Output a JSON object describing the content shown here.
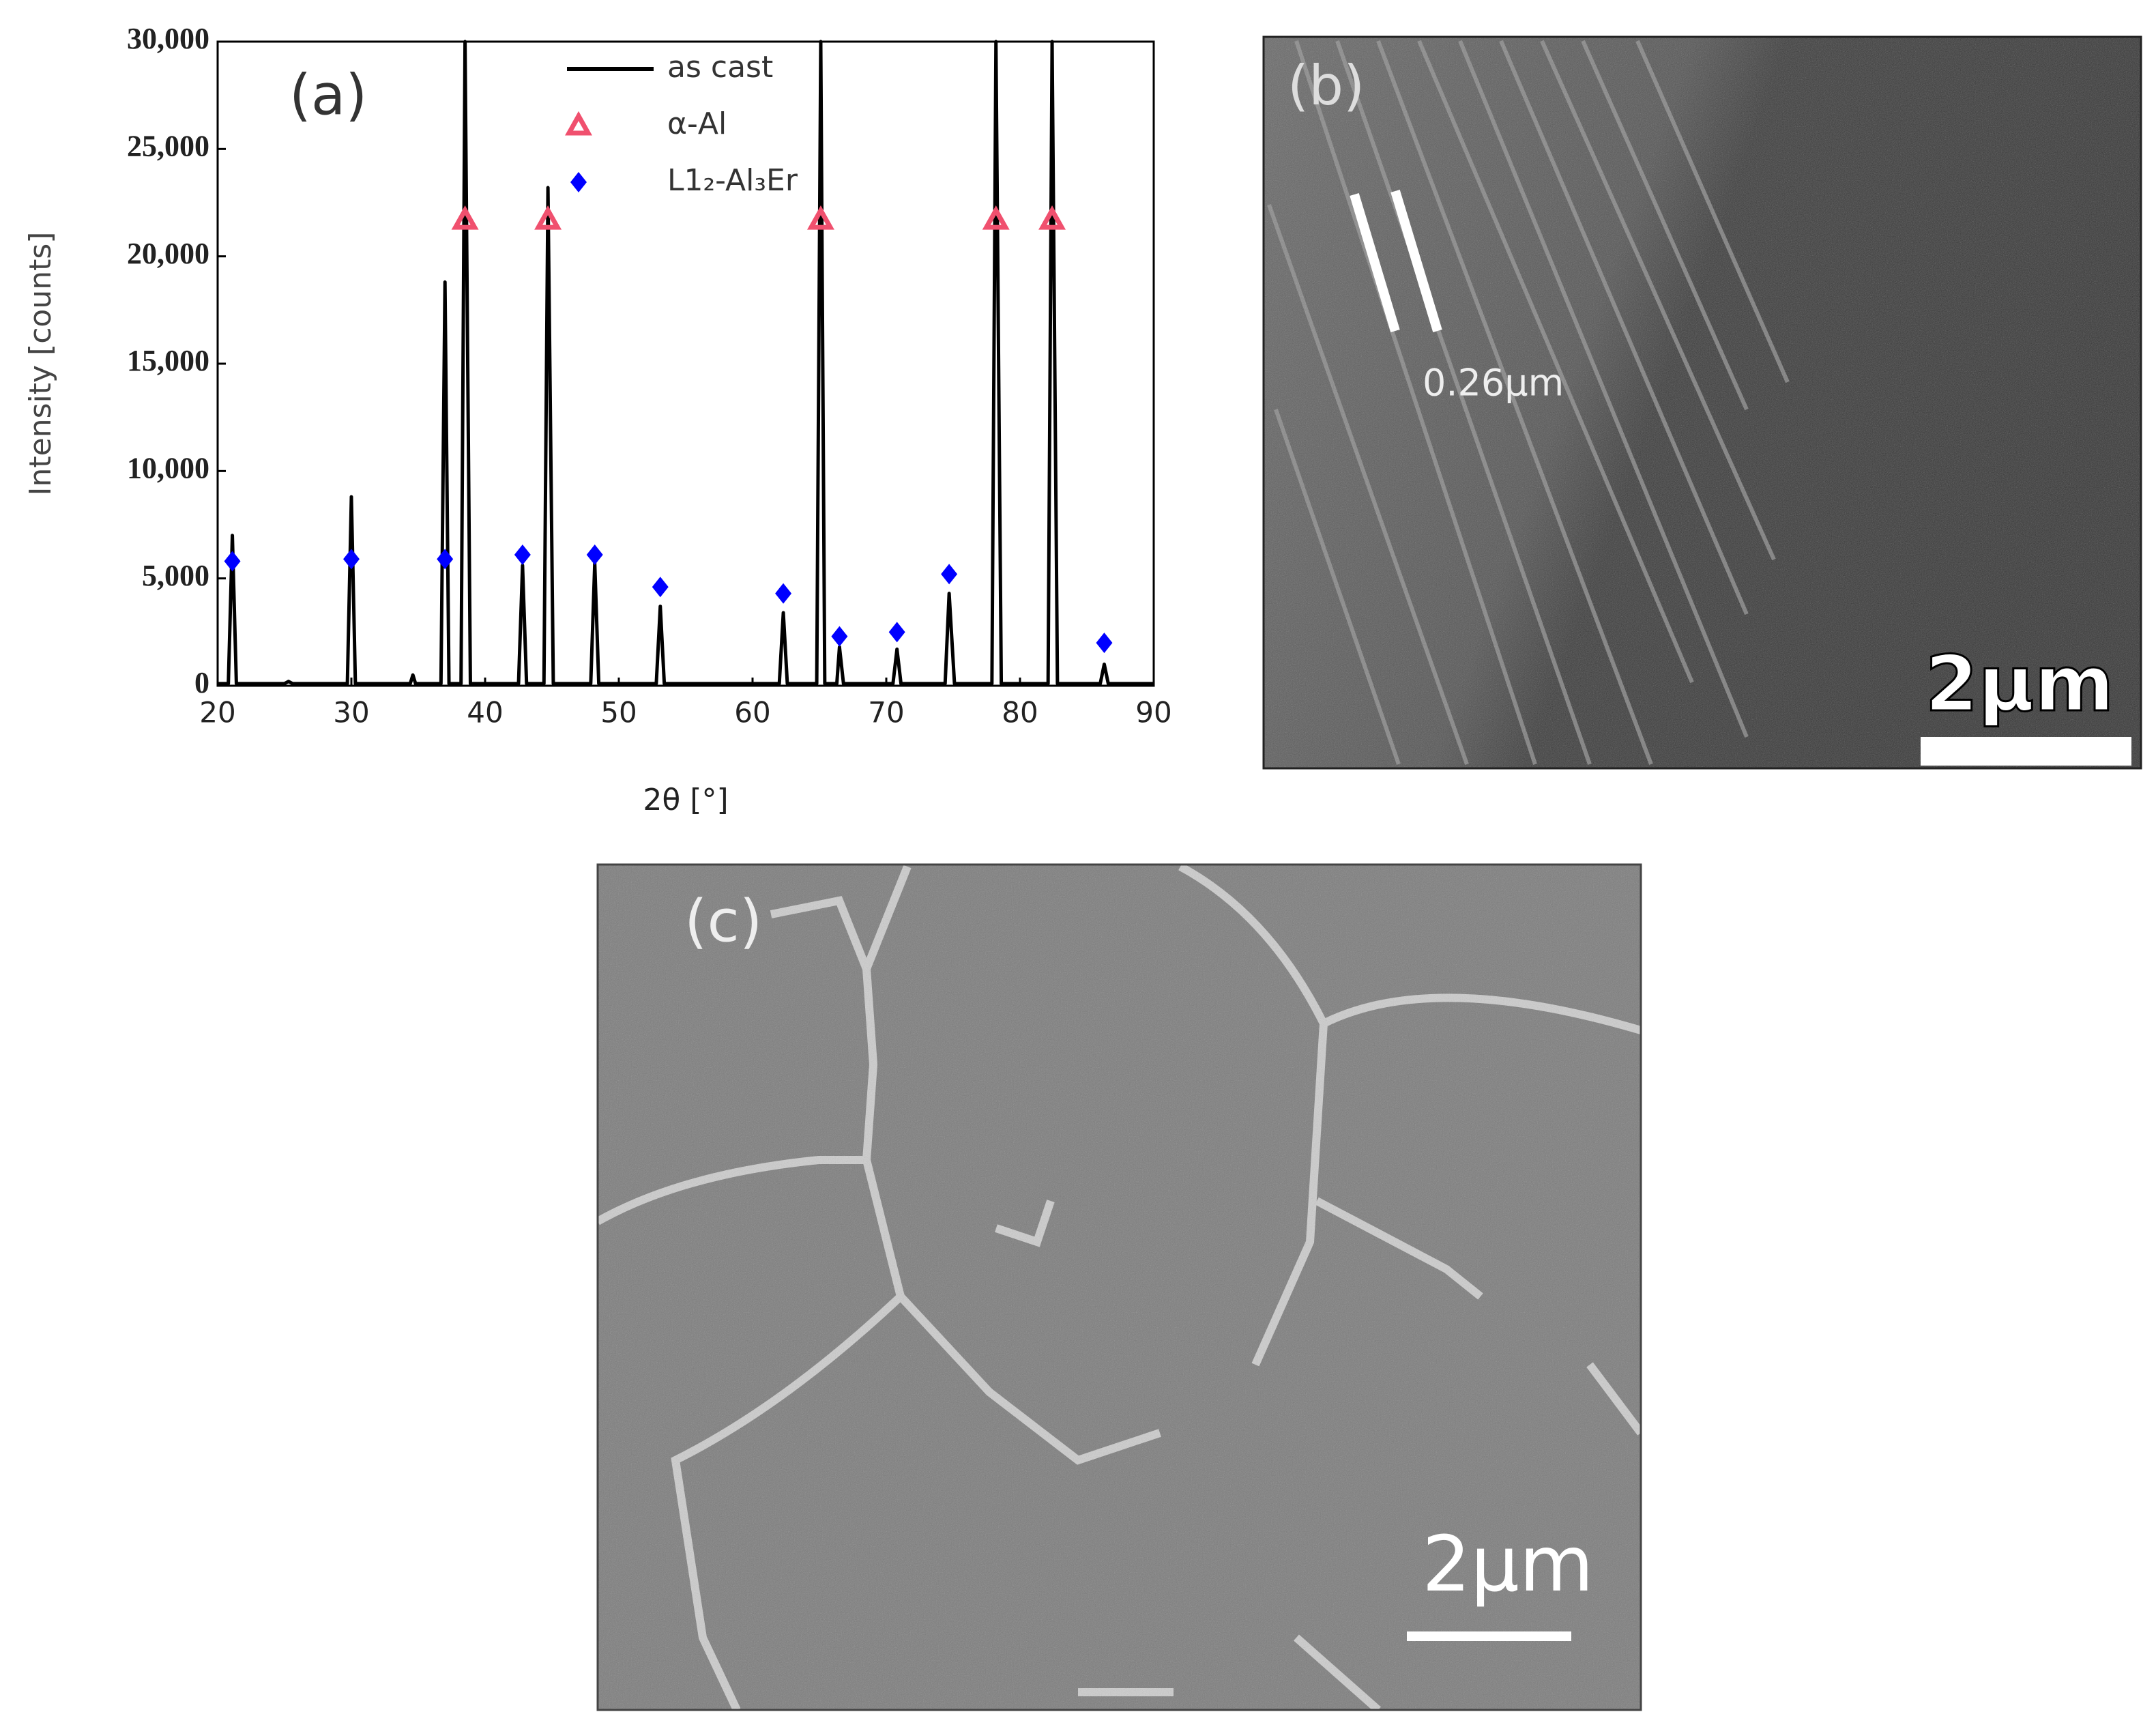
{
  "chart_data": {
    "type": "line",
    "panel_label": "(a)",
    "x_label": "2θ [°]",
    "y_label": "Intensity [counts]",
    "xlim": [
      20,
      90
    ],
    "xticks": [
      20,
      30,
      40,
      50,
      60,
      70,
      80,
      90
    ],
    "ylim": [
      0,
      30000
    ],
    "yticks": [
      0,
      {
        "value": 5000,
        "label": "5,000"
      },
      {
        "value": 10000,
        "label": "10,000"
      },
      {
        "value": 15000,
        "label": "15,000"
      },
      {
        "value": 20000,
        "label": "20,000"
      },
      {
        "value": 25000,
        "label": "25,000"
      },
      {
        "value": 30000,
        "label": "30,000"
      }
    ],
    "legend": "top-center",
    "series": [
      {
        "name": "as cast",
        "color": "#000000",
        "marker": "none",
        "x": [
          20,
          20.8,
          21.1,
          21.4,
          25,
          25.3,
          25.6,
          29.7,
          30,
          30.3,
          34.4,
          34.6,
          34.8,
          36.7,
          37,
          37.3,
          38.2,
          38.5,
          38.9,
          42.5,
          42.8,
          43.1,
          44.4,
          44.7,
          45.1,
          47.9,
          48.2,
          48.5,
          52.8,
          53.1,
          53.4,
          62,
          62.3,
          62.6,
          64.8,
          65.1,
          65.4,
          66.3,
          66.5,
          66.8,
          70.5,
          70.8,
          71.1,
          74.4,
          74.7,
          75.1,
          77.9,
          78.2,
          78.6,
          82.1,
          82.4,
          82.8,
          86,
          86.3,
          86.6,
          90
        ],
        "values": [
          100,
          100,
          7000,
          100,
          100,
          200,
          100,
          100,
          8800,
          100,
          100,
          500,
          100,
          100,
          18800,
          100,
          100,
          30000,
          100,
          100,
          5600,
          100,
          100,
          23200,
          100,
          100,
          5700,
          100,
          100,
          3700,
          100,
          100,
          3400,
          100,
          100,
          30000,
          100,
          100,
          1800,
          100,
          100,
          1700,
          100,
          100,
          4300,
          100,
          100,
          30000,
          100,
          100,
          30000,
          100,
          100,
          1000,
          100,
          100
        ]
      },
      {
        "name": "α-Al",
        "color": "#f0506e",
        "marker": "triangle",
        "x": [
          38.5,
          44.7,
          65.1,
          78.2,
          82.4
        ],
        "values": [
          21700,
          21700,
          21700,
          21700,
          21700
        ]
      },
      {
        "name": "L1₂-Al₃Er",
        "color": "#0000ff",
        "marker": "diamond",
        "x": [
          21.1,
          30.0,
          37.0,
          42.8,
          48.2,
          53.1,
          62.3,
          66.5,
          70.8,
          74.7,
          86.3
        ],
        "values": [
          5800,
          5900,
          5900,
          6100,
          6100,
          4600,
          4300,
          2300,
          2500,
          5200,
          2000
        ]
      }
    ]
  },
  "panels": [
    {
      "label": "(b)",
      "annotation": "0.26μm",
      "scale_bar": "2μm"
    },
    {
      "label": "(c)",
      "scale_bar": "2μm"
    }
  ]
}
